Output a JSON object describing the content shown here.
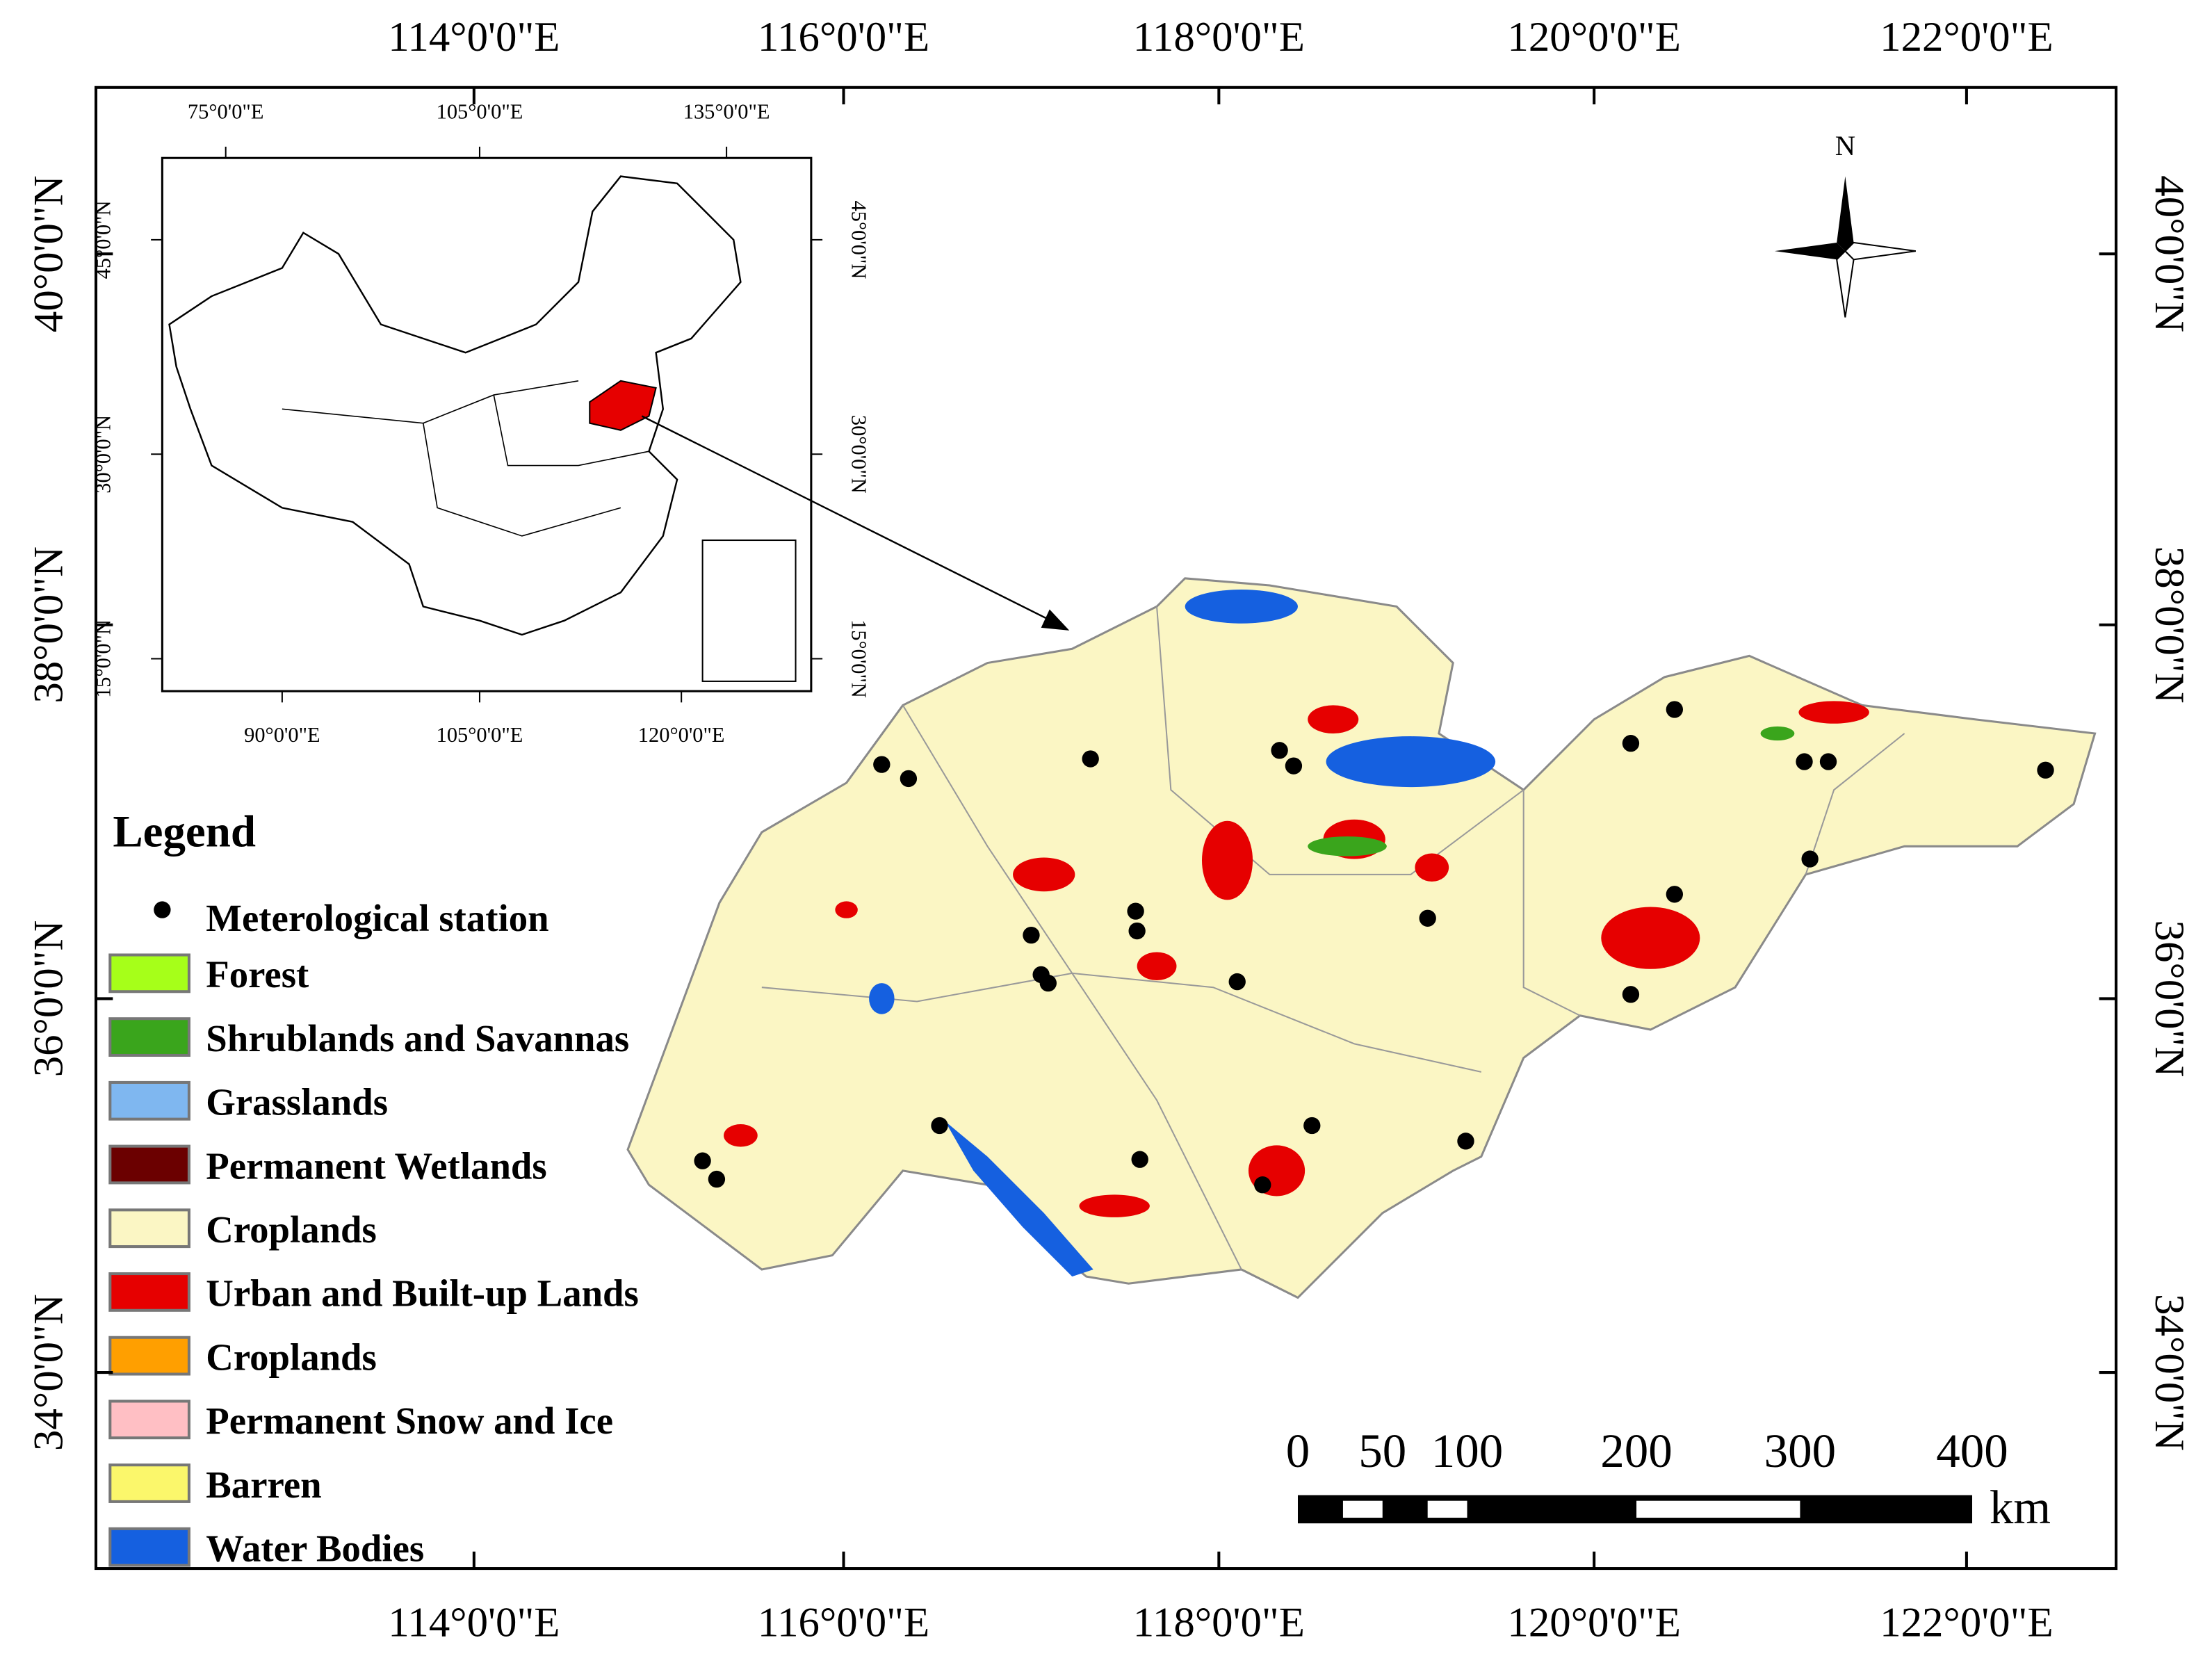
{
  "map": {
    "lon_labels": [
      "114°0'0\"E",
      "116°0'0\"E",
      "118°0'0\"E",
      "120°0'0\"E",
      "122°0'0\"E"
    ],
    "lat_labels": [
      "40°0'0\"N",
      "38°0'0\"N",
      "36°0'0\"N",
      "34°0'0\"N"
    ],
    "north": "N",
    "inset": {
      "top_labels": [
        "75°0'0\"E",
        "105°0'0\"E",
        "135°0'0\"E"
      ],
      "bottom_labels": [
        "90°0'0\"E",
        "105°0'0\"E",
        "120°0'0\"E"
      ],
      "lat_labels": [
        "45°0'0\"N",
        "30°0'0\"N",
        "15°0'0\"N"
      ]
    },
    "legend": {
      "title": "Legend",
      "station": "Meterological station",
      "items": [
        {
          "label": "Forest",
          "color": "#a6ff19"
        },
        {
          "label": "Shrublands and Savannas",
          "color": "#3aa51c"
        },
        {
          "label": "Grasslands",
          "color": "#7fb7f0"
        },
        {
          "label": "Permanent Wetlands",
          "color": "#6b0000"
        },
        {
          "label": "Croplands",
          "color": "#fbf6c4"
        },
        {
          "label": "Urban and Built-up Lands",
          "color": "#e60000"
        },
        {
          "label": "Croplands",
          "color": "#ff9f00"
        },
        {
          "label": "Permanent Snow and Ice",
          "color": "#ffbfc4"
        },
        {
          "label": "Barren",
          "color": "#fbf76b"
        },
        {
          "label": "Water Bodies",
          "color": "#1560e0"
        }
      ]
    },
    "scale_bar": {
      "labels": [
        "0",
        "50",
        "100",
        "200",
        "300",
        "400"
      ],
      "unit": "km"
    }
  }
}
